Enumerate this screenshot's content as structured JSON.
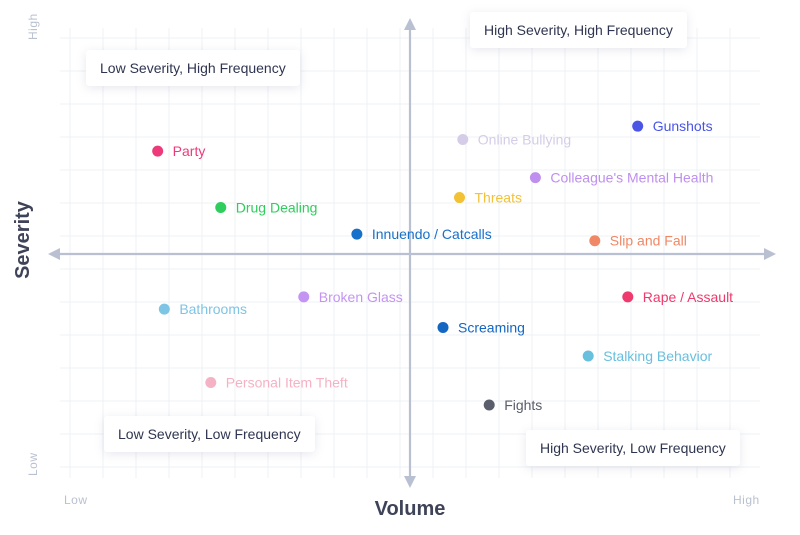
{
  "quadrants": {
    "top_left": "Low Severity, High Frequency",
    "top_right": "High Severity, High Frequency",
    "bottom_left": "Low Severity, Low Frequency",
    "bottom_right": "High Severity, Low Frequency"
  },
  "chart_data": {
    "type": "scatter",
    "xlabel": "Volume",
    "ylabel": "Severity",
    "x_ticks": [
      "Low",
      "High"
    ],
    "y_ticks": [
      "High",
      "Low"
    ],
    "xlim": [
      -10,
      10
    ],
    "ylim": [
      -10,
      10
    ],
    "grid": true,
    "points": [
      {
        "label": "Gunshots",
        "x": 6.9,
        "y": 7.7,
        "color": "#4a55e6"
      },
      {
        "label": "Online Bullying",
        "x": 1.6,
        "y": 6.9,
        "color": "#d5cde8"
      },
      {
        "label": "Party",
        "x": -7.6,
        "y": 6.2,
        "color": "#ee3a7a"
      },
      {
        "label": "Colleague's Mental Health",
        "x": 3.8,
        "y": 4.6,
        "color": "#bf8ff0"
      },
      {
        "label": "Threats",
        "x": 1.5,
        "y": 3.4,
        "color": "#f3c234"
      },
      {
        "label": "Drug Dealing",
        "x": -5.7,
        "y": 2.8,
        "color": "#2fcc5e"
      },
      {
        "label": "Innuendo / Catcalls",
        "x": -1.6,
        "y": 1.2,
        "color": "#1770c9"
      },
      {
        "label": "Slip and Fall",
        "x": 5.6,
        "y": 0.8,
        "color": "#f08866"
      },
      {
        "label": "Broken Glass",
        "x": -3.2,
        "y": -2.1,
        "color": "#c494f2"
      },
      {
        "label": "Rape / Assault",
        "x": 6.6,
        "y": -2.1,
        "color": "#ee3a6c"
      },
      {
        "label": "Bathrooms",
        "x": -7.4,
        "y": -2.7,
        "color": "#7ec4e4"
      },
      {
        "label": "Screaming",
        "x": 1.0,
        "y": -3.6,
        "color": "#1366c2"
      },
      {
        "label": "Stalking Behavior",
        "x": 5.4,
        "y": -5.0,
        "color": "#68bfde"
      },
      {
        "label": "Personal Item Theft",
        "x": -6.0,
        "y": -6.3,
        "color": "#f5b2c4"
      },
      {
        "label": "Fights",
        "x": 2.4,
        "y": -7.4,
        "color": "#5a5d6a"
      }
    ]
  }
}
